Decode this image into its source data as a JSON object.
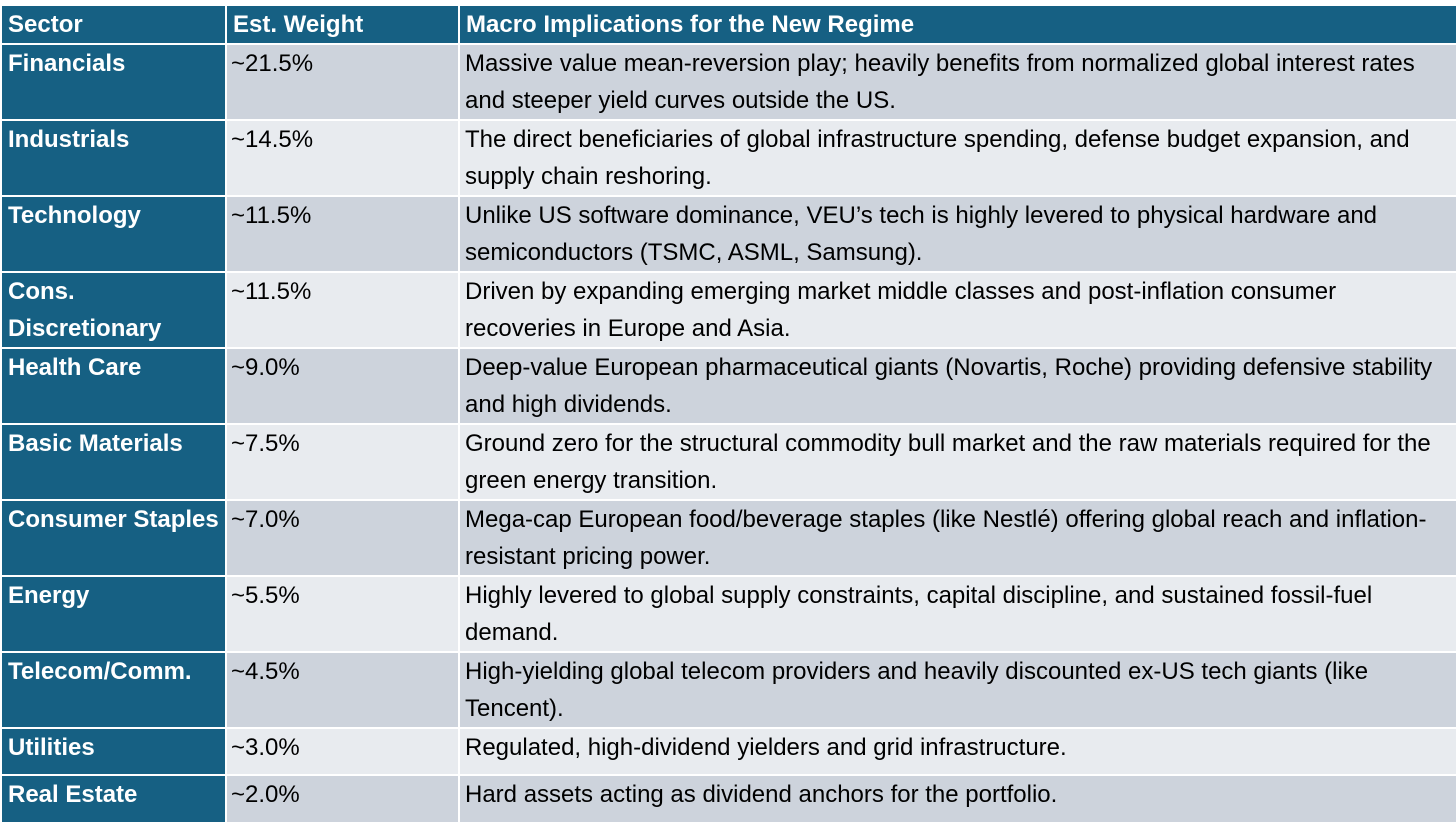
{
  "headers": {
    "sector": "Sector",
    "weight": "Est. Weight",
    "implications": "Macro Implications for the New Regime"
  },
  "rows": [
    {
      "sector": "Financials",
      "weight": "~21.5%",
      "implications": "Massive value mean-reversion play; heavily benefits from normalized global interest rates and steeper yield curves outside the US."
    },
    {
      "sector": "Industrials",
      "weight": "~14.5%",
      "implications": "The direct beneficiaries of global infrastructure spending, defense budget expansion, and supply chain reshoring."
    },
    {
      "sector": "Technology",
      "weight": "~11.5%",
      "implications": "Unlike US software dominance, VEU’s tech is highly levered to physical hardware and semiconductors (TSMC, ASML, Samsung)."
    },
    {
      "sector": "Cons. Discretionary",
      "weight": "~11.5%",
      "implications": "Driven by expanding emerging market middle classes and post-inflation consumer recoveries in Europe and Asia."
    },
    {
      "sector": "Health Care",
      "weight": "~9.0%",
      "implications": "Deep-value European pharmaceutical giants (Novartis, Roche) providing defensive stability and high dividends."
    },
    {
      "sector": "Basic Materials",
      "weight": "~7.5%",
      "implications": "Ground zero for the structural commodity bull market and the raw materials required for the green energy transition."
    },
    {
      "sector": "Consumer Staples",
      "weight": "~7.0%",
      "implications": "Mega-cap European food/beverage staples (like Nestlé) offering global reach and inflation-resistant pricing power."
    },
    {
      "sector": "Energy",
      "weight": "~5.5%",
      "implications": "Highly levered to global supply constraints, capital discipline, and sustained fossil-fuel demand."
    },
    {
      "sector": "Telecom/Comm.",
      "weight": "~4.5%",
      "implications": "High-yielding global telecom providers and heavily discounted ex-US tech giants (like Tencent)."
    },
    {
      "sector": "Utilities",
      "weight": "~3.0%",
      "implications": "Regulated, high-dividend yielders and grid infrastructure."
    },
    {
      "sector": "Real Estate",
      "weight": "~2.0%",
      "implications": "Hard assets acting as dividend anchors for the portfolio."
    }
  ]
}
